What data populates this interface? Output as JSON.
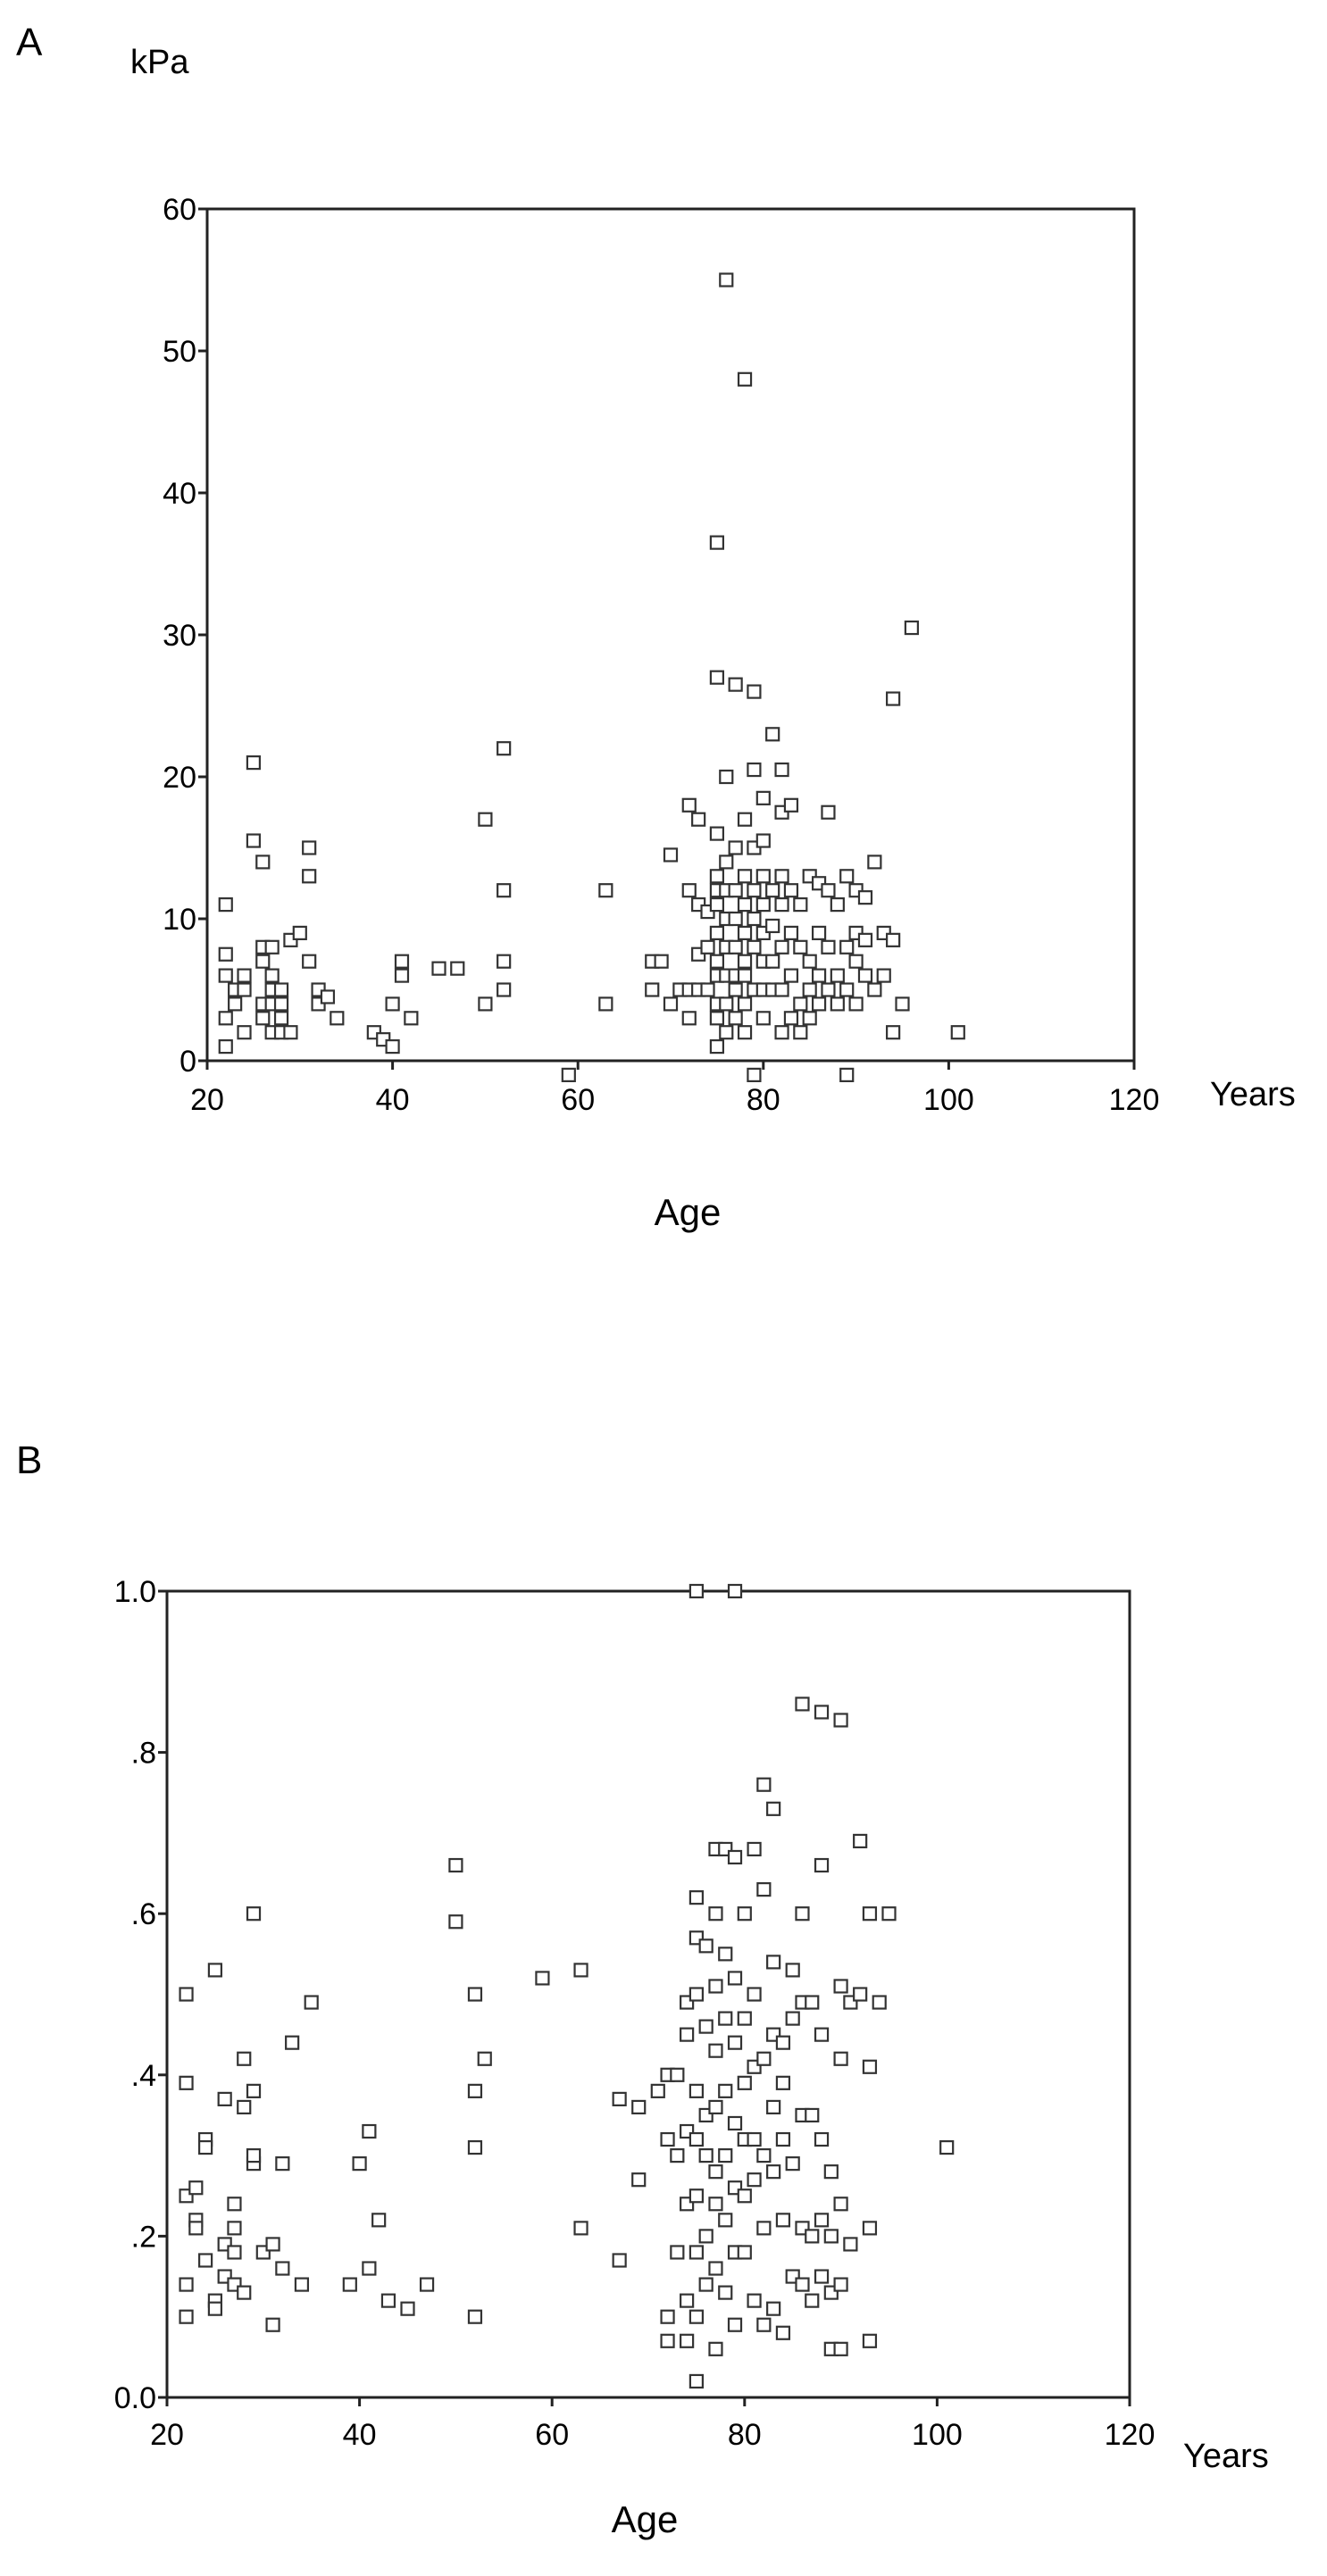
{
  "figure": {
    "panel_a_label": "A",
    "panel_b_label": "B"
  },
  "chart_data": [
    {
      "type": "scatter",
      "panel": "A",
      "ylabel": "kPa",
      "xlabel": "Age",
      "x_unit": "Years",
      "xlim": [
        20,
        120
      ],
      "ylim": [
        0,
        60
      ],
      "x_ticks": [
        "20",
        "40",
        "60",
        "80",
        "100",
        "120"
      ],
      "y_ticks": [
        "0",
        "10",
        "20",
        "30",
        "40",
        "50",
        "60"
      ],
      "grid": false,
      "marker": "open-square",
      "points": [
        [
          22,
          11
        ],
        [
          22,
          7.5
        ],
        [
          22,
          6
        ],
        [
          22,
          3
        ],
        [
          22,
          1
        ],
        [
          23,
          5
        ],
        [
          23,
          4
        ],
        [
          24,
          6
        ],
        [
          24,
          5
        ],
        [
          24,
          2
        ],
        [
          25,
          21
        ],
        [
          25,
          15.5
        ],
        [
          26,
          14
        ],
        [
          26,
          8
        ],
        [
          26,
          7
        ],
        [
          26,
          4
        ],
        [
          26,
          3
        ],
        [
          27,
          8
        ],
        [
          27,
          6
        ],
        [
          27,
          5
        ],
        [
          27,
          4
        ],
        [
          27,
          2
        ],
        [
          28,
          5
        ],
        [
          28,
          4
        ],
        [
          28,
          3
        ],
        [
          28,
          2
        ],
        [
          29,
          2
        ],
        [
          29,
          8.5
        ],
        [
          30,
          9
        ],
        [
          31,
          15
        ],
        [
          31,
          13
        ],
        [
          31,
          7
        ],
        [
          32,
          5
        ],
        [
          32,
          4
        ],
        [
          33,
          4.5
        ],
        [
          34,
          3
        ],
        [
          38,
          2
        ],
        [
          39,
          1.5
        ],
        [
          40,
          4
        ],
        [
          40,
          1
        ],
        [
          41,
          7
        ],
        [
          41,
          6
        ],
        [
          42,
          3
        ],
        [
          45,
          6.5
        ],
        [
          47,
          6.5
        ],
        [
          50,
          17
        ],
        [
          50,
          4
        ],
        [
          52,
          22
        ],
        [
          52,
          12
        ],
        [
          52,
          7
        ],
        [
          52,
          5
        ],
        [
          59,
          -1
        ],
        [
          63,
          12
        ],
        [
          63,
          4
        ],
        [
          68,
          7
        ],
        [
          68,
          5
        ],
        [
          69,
          7
        ],
        [
          70,
          14.5
        ],
        [
          70,
          4
        ],
        [
          71,
          5
        ],
        [
          72,
          18
        ],
        [
          72,
          12
        ],
        [
          72,
          5
        ],
        [
          72,
          3
        ],
        [
          73,
          17
        ],
        [
          73,
          11
        ],
        [
          73,
          7.5
        ],
        [
          73,
          5
        ],
        [
          74,
          10.5
        ],
        [
          74,
          8
        ],
        [
          74,
          5
        ],
        [
          75,
          36.5
        ],
        [
          75,
          27
        ],
        [
          75,
          16
        ],
        [
          75,
          13
        ],
        [
          75,
          12
        ],
        [
          75,
          11
        ],
        [
          75,
          9
        ],
        [
          75,
          7
        ],
        [
          75,
          6
        ],
        [
          75,
          4
        ],
        [
          75,
          3
        ],
        [
          75,
          1
        ],
        [
          76,
          55
        ],
        [
          76,
          20
        ],
        [
          76,
          14
        ],
        [
          76,
          12
        ],
        [
          76,
          10
        ],
        [
          76,
          8
        ],
        [
          76,
          6
        ],
        [
          76,
          4
        ],
        [
          76,
          2
        ],
        [
          77,
          26.5
        ],
        [
          77,
          15
        ],
        [
          77,
          12
        ],
        [
          77,
          10
        ],
        [
          77,
          8
        ],
        [
          77,
          6
        ],
        [
          77,
          5
        ],
        [
          77,
          3
        ],
        [
          78,
          48
        ],
        [
          78,
          17
        ],
        [
          78,
          13
        ],
        [
          78,
          11
        ],
        [
          78,
          9
        ],
        [
          78,
          7
        ],
        [
          78,
          6
        ],
        [
          78,
          4
        ],
        [
          78,
          2
        ],
        [
          79,
          26
        ],
        [
          79,
          20.5
        ],
        [
          79,
          15
        ],
        [
          79,
          12
        ],
        [
          79,
          10
        ],
        [
          79,
          8
        ],
        [
          79,
          5
        ],
        [
          79,
          -1
        ],
        [
          80,
          18.5
        ],
        [
          80,
          15.5
        ],
        [
          80,
          13
        ],
        [
          80,
          11
        ],
        [
          80,
          9
        ],
        [
          80,
          7
        ],
        [
          80,
          5
        ],
        [
          80,
          3
        ],
        [
          81,
          23
        ],
        [
          81,
          12
        ],
        [
          81,
          9.5
        ],
        [
          81,
          7
        ],
        [
          81,
          5
        ],
        [
          82,
          20.5
        ],
        [
          82,
          17.5
        ],
        [
          82,
          13
        ],
        [
          82,
          11
        ],
        [
          82,
          8
        ],
        [
          82,
          5
        ],
        [
          82,
          2
        ],
        [
          83,
          18
        ],
        [
          83,
          12
        ],
        [
          83,
          9
        ],
        [
          83,
          6
        ],
        [
          83,
          3
        ],
        [
          84,
          11
        ],
        [
          84,
          8
        ],
        [
          84,
          4
        ],
        [
          84,
          2
        ],
        [
          85,
          13
        ],
        [
          85,
          7
        ],
        [
          85,
          5
        ],
        [
          85,
          3
        ],
        [
          86,
          12.5
        ],
        [
          86,
          9
        ],
        [
          86,
          6
        ],
        [
          86,
          4
        ],
        [
          87,
          17.5
        ],
        [
          87,
          12
        ],
        [
          87,
          8
        ],
        [
          87,
          5
        ],
        [
          88,
          11
        ],
        [
          88,
          6
        ],
        [
          88,
          4
        ],
        [
          89,
          13
        ],
        [
          89,
          8
        ],
        [
          89,
          5
        ],
        [
          89,
          -1
        ],
        [
          90,
          12
        ],
        [
          90,
          9
        ],
        [
          90,
          7
        ],
        [
          90,
          4
        ],
        [
          91,
          11.5
        ],
        [
          91,
          8.5
        ],
        [
          91,
          6
        ],
        [
          92,
          14
        ],
        [
          92,
          5
        ],
        [
          93,
          9
        ],
        [
          93,
          6
        ],
        [
          94,
          25.5
        ],
        [
          94,
          8.5
        ],
        [
          94,
          2
        ],
        [
          95,
          4
        ],
        [
          96,
          30.5
        ],
        [
          101,
          2
        ]
      ]
    },
    {
      "type": "scatter",
      "panel": "B",
      "ylabel": "",
      "xlabel": "Age",
      "x_unit": "Years",
      "xlim": [
        20,
        120
      ],
      "ylim": [
        0,
        1
      ],
      "x_ticks": [
        "20",
        "40",
        "60",
        "80",
        "100",
        "120"
      ],
      "y_ticks": [
        "0.0",
        ".2",
        ".4",
        ".6",
        ".8",
        "1.0"
      ],
      "grid": false,
      "marker": "open-square",
      "points": [
        [
          22,
          0.5
        ],
        [
          22,
          0.39
        ],
        [
          22,
          0.25
        ],
        [
          22,
          0.14
        ],
        [
          22,
          0.1
        ],
        [
          23,
          0.26
        ],
        [
          23,
          0.22
        ],
        [
          23,
          0.21
        ],
        [
          24,
          0.32
        ],
        [
          24,
          0.31
        ],
        [
          24,
          0.17
        ],
        [
          25,
          0.53
        ],
        [
          25,
          0.12
        ],
        [
          25,
          0.11
        ],
        [
          26,
          0.37
        ],
        [
          26,
          0.19
        ],
        [
          26,
          0.15
        ],
        [
          27,
          0.24
        ],
        [
          27,
          0.21
        ],
        [
          27,
          0.18
        ],
        [
          27,
          0.14
        ],
        [
          28,
          0.42
        ],
        [
          28,
          0.36
        ],
        [
          28,
          0.13
        ],
        [
          29,
          0.6
        ],
        [
          29,
          0.38
        ],
        [
          29,
          0.29
        ],
        [
          29,
          0.3
        ],
        [
          30,
          0.18
        ],
        [
          31,
          0.19
        ],
        [
          31,
          0.09
        ],
        [
          32,
          0.29
        ],
        [
          32,
          0.16
        ],
        [
          33,
          0.44
        ],
        [
          34,
          0.14
        ],
        [
          35,
          0.49
        ],
        [
          39,
          0.14
        ],
        [
          40,
          0.29
        ],
        [
          41,
          0.33
        ],
        [
          41,
          0.16
        ],
        [
          42,
          0.22
        ],
        [
          43,
          0.12
        ],
        [
          45,
          0.11
        ],
        [
          47,
          0.14
        ],
        [
          50,
          0.66
        ],
        [
          50,
          0.59
        ],
        [
          52,
          0.5
        ],
        [
          52,
          0.38
        ],
        [
          52,
          0.31
        ],
        [
          52,
          0.1
        ],
        [
          53,
          0.42
        ],
        [
          59,
          0.52
        ],
        [
          63,
          0.53
        ],
        [
          63,
          0.21
        ],
        [
          67,
          0.37
        ],
        [
          67,
          0.17
        ],
        [
          69,
          0.36
        ],
        [
          69,
          0.27
        ],
        [
          71,
          0.38
        ],
        [
          72,
          0.4
        ],
        [
          72,
          0.32
        ],
        [
          72,
          0.1
        ],
        [
          72,
          0.07
        ],
        [
          73,
          0.4
        ],
        [
          73,
          0.3
        ],
        [
          73,
          0.18
        ],
        [
          74,
          0.49
        ],
        [
          74,
          0.45
        ],
        [
          74,
          0.33
        ],
        [
          74,
          0.24
        ],
        [
          74,
          0.12
        ],
        [
          74,
          0.07
        ],
        [
          75,
          1.0
        ],
        [
          75,
          0.62
        ],
        [
          75,
          0.57
        ],
        [
          75,
          0.5
        ],
        [
          75,
          0.38
        ],
        [
          75,
          0.32
        ],
        [
          75,
          0.25
        ],
        [
          75,
          0.18
        ],
        [
          75,
          0.1
        ],
        [
          75,
          0.02
        ],
        [
          76,
          0.56
        ],
        [
          76,
          0.46
        ],
        [
          76,
          0.35
        ],
        [
          76,
          0.3
        ],
        [
          76,
          0.2
        ],
        [
          76,
          0.14
        ],
        [
          77,
          0.68
        ],
        [
          77,
          0.6
        ],
        [
          77,
          0.51
        ],
        [
          77,
          0.43
        ],
        [
          77,
          0.36
        ],
        [
          77,
          0.28
        ],
        [
          77,
          0.24
        ],
        [
          77,
          0.16
        ],
        [
          77,
          0.06
        ],
        [
          78,
          0.68
        ],
        [
          78,
          0.55
        ],
        [
          78,
          0.47
        ],
        [
          78,
          0.38
        ],
        [
          78,
          0.3
        ],
        [
          78,
          0.22
        ],
        [
          78,
          0.13
        ],
        [
          79,
          1.0
        ],
        [
          79,
          0.67
        ],
        [
          79,
          0.52
        ],
        [
          79,
          0.44
        ],
        [
          79,
          0.34
        ],
        [
          79,
          0.26
        ],
        [
          79,
          0.18
        ],
        [
          79,
          0.09
        ],
        [
          80,
          0.6
        ],
        [
          80,
          0.47
        ],
        [
          80,
          0.39
        ],
        [
          80,
          0.32
        ],
        [
          80,
          0.25
        ],
        [
          80,
          0.18
        ],
        [
          81,
          0.68
        ],
        [
          81,
          0.5
        ],
        [
          81,
          0.41
        ],
        [
          81,
          0.32
        ],
        [
          81,
          0.27
        ],
        [
          81,
          0.12
        ],
        [
          82,
          0.76
        ],
        [
          82,
          0.63
        ],
        [
          82,
          0.42
        ],
        [
          82,
          0.3
        ],
        [
          82,
          0.21
        ],
        [
          82,
          0.09
        ],
        [
          83,
          0.73
        ],
        [
          83,
          0.54
        ],
        [
          83,
          0.45
        ],
        [
          83,
          0.36
        ],
        [
          83,
          0.28
        ],
        [
          83,
          0.11
        ],
        [
          84,
          0.44
        ],
        [
          84,
          0.39
        ],
        [
          84,
          0.32
        ],
        [
          84,
          0.22
        ],
        [
          84,
          0.08
        ],
        [
          85,
          0.53
        ],
        [
          85,
          0.47
        ],
        [
          85,
          0.29
        ],
        [
          85,
          0.15
        ],
        [
          86,
          0.86
        ],
        [
          86,
          0.6
        ],
        [
          86,
          0.49
        ],
        [
          86,
          0.35
        ],
        [
          86,
          0.21
        ],
        [
          86,
          0.14
        ],
        [
          87,
          0.49
        ],
        [
          87,
          0.35
        ],
        [
          87,
          0.2
        ],
        [
          87,
          0.12
        ],
        [
          88,
          0.85
        ],
        [
          88,
          0.66
        ],
        [
          88,
          0.45
        ],
        [
          88,
          0.32
        ],
        [
          88,
          0.22
        ],
        [
          88,
          0.15
        ],
        [
          89,
          0.28
        ],
        [
          89,
          0.2
        ],
        [
          89,
          0.13
        ],
        [
          89,
          0.06
        ],
        [
          90,
          0.84
        ],
        [
          90,
          0.51
        ],
        [
          90,
          0.42
        ],
        [
          90,
          0.24
        ],
        [
          90,
          0.14
        ],
        [
          90,
          0.06
        ],
        [
          91,
          0.49
        ],
        [
          91,
          0.19
        ],
        [
          92,
          0.69
        ],
        [
          92,
          0.5
        ],
        [
          93,
          0.6
        ],
        [
          93,
          0.41
        ],
        [
          93,
          0.21
        ],
        [
          93,
          0.07
        ],
        [
          94,
          0.49
        ],
        [
          95,
          0.6
        ],
        [
          101,
          0.31
        ]
      ]
    }
  ]
}
